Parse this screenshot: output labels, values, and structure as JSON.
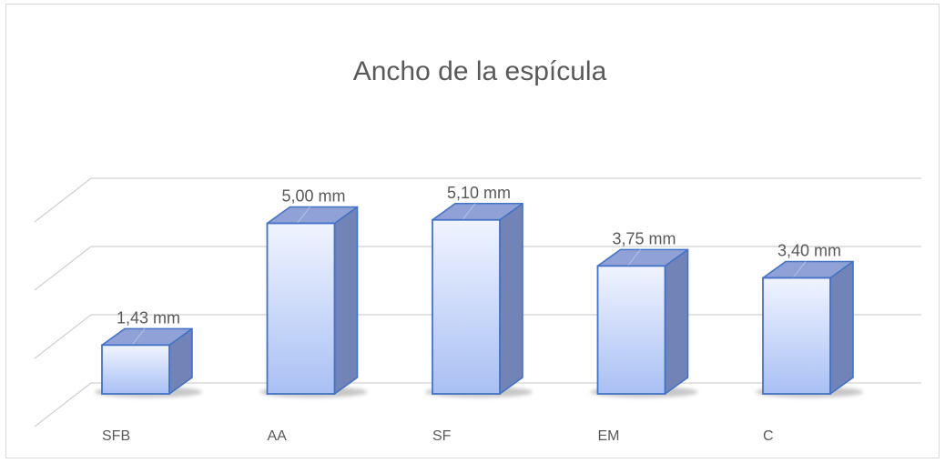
{
  "chart_data": {
    "type": "bar",
    "title": "Ancho de la espícula",
    "categories": [
      "SFB",
      "AA",
      "SF",
      "EM",
      "C"
    ],
    "values": [
      1.43,
      5.0,
      5.1,
      3.75,
      3.4
    ],
    "data_labels": [
      "1,43 mm",
      "5,00 mm",
      "5,10 mm",
      "3,75 mm",
      "3,40 mm"
    ],
    "xlabel": "",
    "ylabel": "",
    "ylim": [
      0,
      6
    ],
    "grid": true,
    "legend": "none",
    "style": "3d-column",
    "colors": {
      "bar_top": "#f0f4ff",
      "bar_bottom": "#a9c0f4",
      "bar_side": "#7283b8",
      "bar_roof": "#8fa1d6",
      "bar_outline": "#4472c4",
      "gridline": "#d0d0d0",
      "text": "#595959"
    }
  }
}
